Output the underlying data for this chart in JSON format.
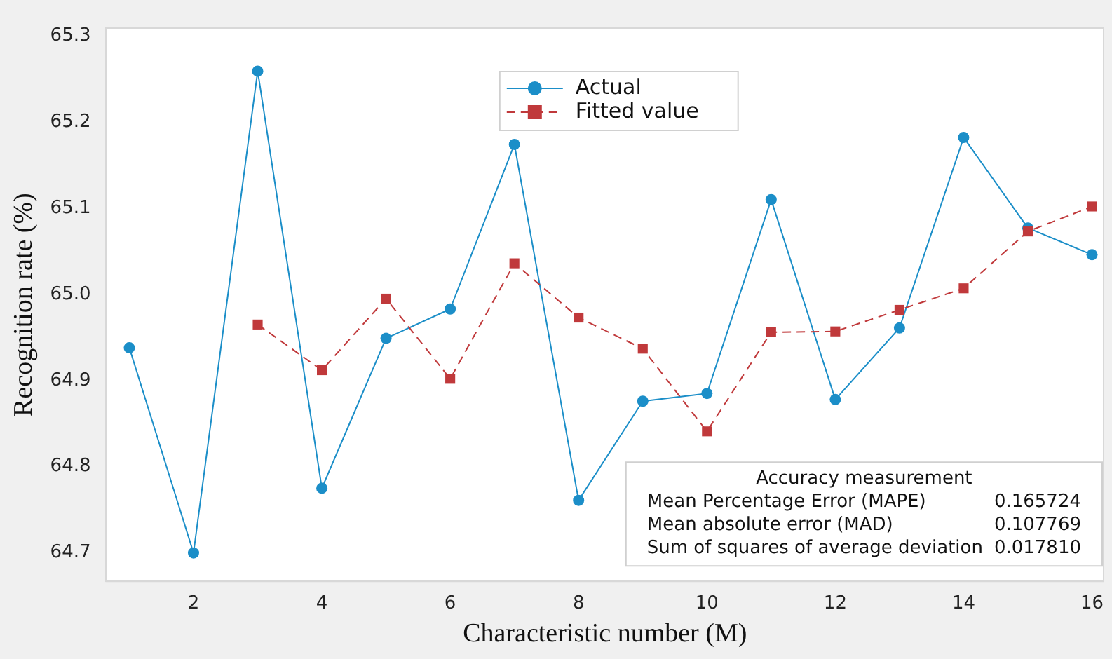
{
  "chart_data": {
    "type": "line",
    "xlabel": "Characteristic number (M)",
    "ylabel": "Recognition rate (%)",
    "x": [
      1,
      2,
      3,
      4,
      5,
      6,
      7,
      8,
      9,
      10,
      11,
      12,
      13,
      14,
      15,
      16
    ],
    "xlim": [
      0.64,
      16.18
    ],
    "xticks": [
      2,
      4,
      6,
      8,
      10,
      12,
      14,
      16
    ],
    "ylim": [
      64.667,
      65.309
    ],
    "yticks": [
      64.7,
      64.8,
      64.9,
      {
        "value": 65.0,
        "label": "65.0"
      },
      65.1,
      65.2,
      65.3
    ],
    "grid": false,
    "legend": "top",
    "series": [
      {
        "name": "Actual",
        "color": "#1b8ec8",
        "marker": "circle",
        "line_style": "solid",
        "values": [
          64.938,
          64.7,
          65.259,
          64.775,
          64.949,
          64.983,
          65.174,
          64.761,
          64.876,
          64.885,
          65.11,
          64.878,
          64.961,
          65.182,
          65.077,
          65.046
        ]
      },
      {
        "name": "Fitted value",
        "color": "#c0393b",
        "marker": "square",
        "line_style": "dashed",
        "values": [
          null,
          null,
          64.965,
          64.912,
          64.995,
          64.902,
          65.036,
          64.973,
          64.937,
          64.841,
          64.956,
          64.957,
          64.982,
          65.007,
          65.073,
          65.102
        ]
      }
    ],
    "annotations": [
      "Accuracy measurement",
      "Mean Percentage Error (MAPE)\t0.165724",
      "Mean absolute error (MAD)\t0.107769",
      "Sum of squares of average deviation\t0.017810"
    ]
  }
}
